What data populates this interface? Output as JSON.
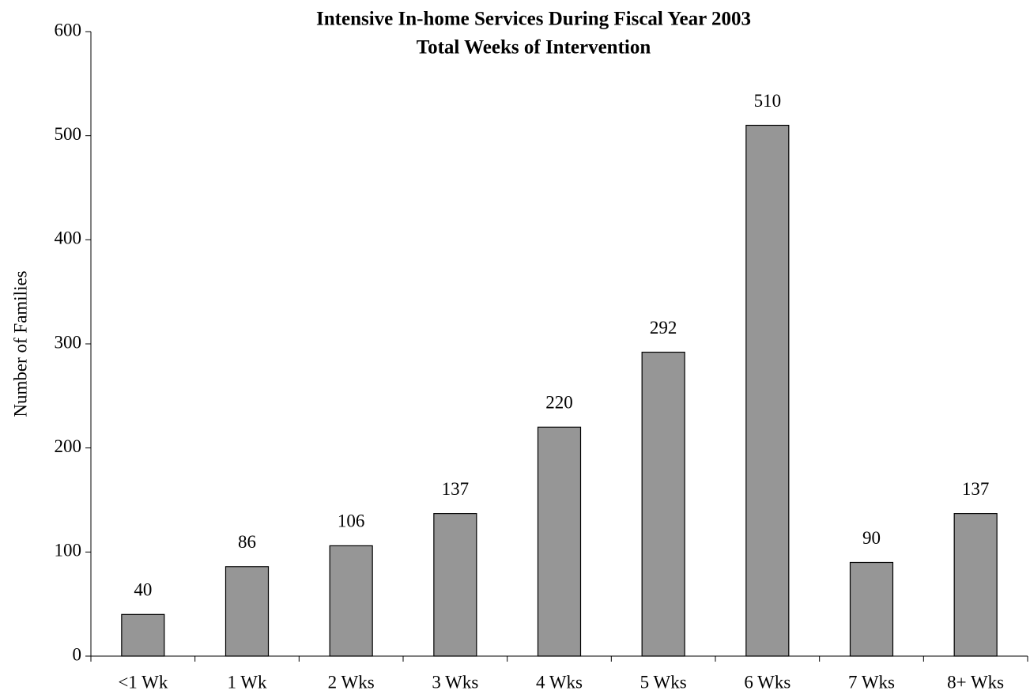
{
  "chart_data": {
    "type": "bar",
    "title": "Intensive In-home Services During Fiscal Year 2003",
    "subtitle": "Total Weeks of Intervention",
    "y_label": "Number of Families",
    "categories": [
      "<1 Wk",
      "1 Wk",
      "2 Wks",
      "3 Wks",
      "4 Wks",
      "5 Wks",
      "6 Wks",
      "7 Wks",
      "8+ Wks"
    ],
    "values": [
      40,
      86,
      106,
      137,
      220,
      292,
      510,
      90,
      137
    ],
    "color": "#969696",
    "ylim": [
      0,
      600
    ],
    "yticks": [
      0,
      100,
      200,
      300,
      400,
      500,
      600
    ],
    "grid": false
  }
}
